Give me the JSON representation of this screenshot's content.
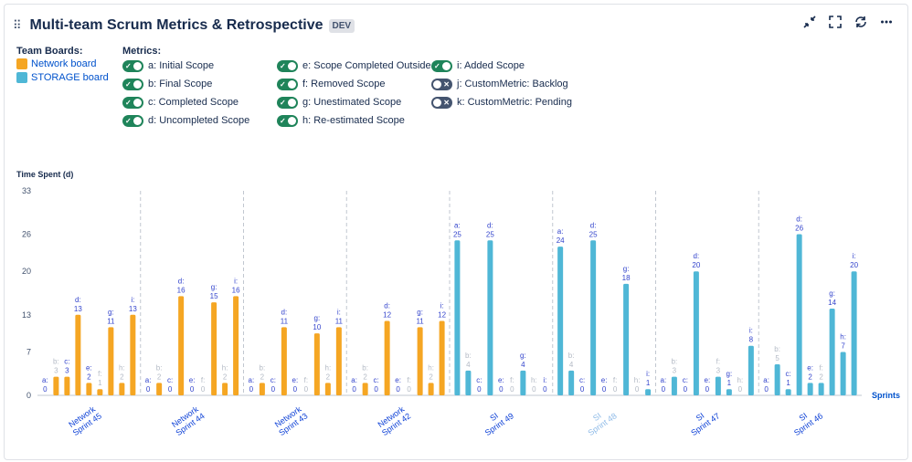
{
  "header": {
    "title": "Multi-team Scrum Metrics & Retrospective",
    "badge": "DEV"
  },
  "legend": {
    "boards_title": "Team Boards:",
    "boards": [
      {
        "label": "Network board",
        "color": "#f5a623"
      },
      {
        "label": "STORAGE board",
        "color": "#4fb7d6"
      }
    ],
    "metrics_title": "Metrics:",
    "metrics": [
      {
        "label": "a: Initial Scope",
        "enabled": true
      },
      {
        "label": "b: Final Scope",
        "enabled": true
      },
      {
        "label": "c: Completed Scope",
        "enabled": true
      },
      {
        "label": "d: Uncompleted Scope",
        "enabled": true
      },
      {
        "label": "e: Scope Completed Outside",
        "enabled": true
      },
      {
        "label": "f: Removed Scope",
        "enabled": true
      },
      {
        "label": "g: Unestimated Scope",
        "enabled": true
      },
      {
        "label": "h: Re-estimated Scope",
        "enabled": true
      },
      {
        "label": "i: Added Scope",
        "enabled": true
      },
      {
        "label": "j: CustomMetric: Backlog",
        "enabled": false
      },
      {
        "label": "k: CustomMetric: Pending",
        "enabled": false
      }
    ]
  },
  "chart_data": {
    "type": "bar",
    "ylabel": "Time Spent (d)",
    "xlabel": "Sprints",
    "ylim": [
      0,
      33
    ],
    "yticks": [
      0,
      7,
      13,
      20,
      26,
      33
    ],
    "metric_keys": [
      "a",
      "b",
      "c",
      "d",
      "e",
      "f",
      "g",
      "h",
      "i"
    ],
    "categories": [
      {
        "name": "Network Sprint 45",
        "board": "Network board",
        "values": [
          0,
          3,
          3,
          13,
          2,
          1,
          11,
          2,
          13
        ],
        "muted": false
      },
      {
        "name": "Network Sprint 44",
        "board": "Network board",
        "values": [
          0,
          2,
          0,
          16,
          0,
          0,
          15,
          2,
          16
        ],
        "muted": false
      },
      {
        "name": "Network Sprint 43",
        "board": "Network board",
        "values": [
          0,
          2,
          0,
          11,
          0,
          0,
          10,
          2,
          11
        ],
        "muted": false
      },
      {
        "name": "Network Sprint 42",
        "board": "Network board",
        "values": [
          0,
          2,
          0,
          12,
          0,
          0,
          11,
          2,
          12
        ],
        "muted": false
      },
      {
        "name": "SI Sprint 49",
        "board": "STORAGE board",
        "values": [
          25,
          4,
          0,
          25,
          0,
          0,
          4,
          0,
          0
        ],
        "muted": false
      },
      {
        "name": "SI Sprint 48",
        "board": "STORAGE board",
        "values": [
          24,
          4,
          0,
          25,
          0,
          0,
          18,
          0,
          1
        ],
        "muted": true
      },
      {
        "name": "SI Sprint 47",
        "board": "STORAGE board",
        "values": [
          0,
          3,
          0,
          20,
          0,
          3,
          1,
          0,
          8
        ],
        "muted": false
      },
      {
        "name": "SI Sprint 46",
        "board": "STORAGE board",
        "values": [
          0,
          5,
          1,
          26,
          2,
          2,
          14,
          7,
          20
        ],
        "muted": false
      }
    ]
  }
}
